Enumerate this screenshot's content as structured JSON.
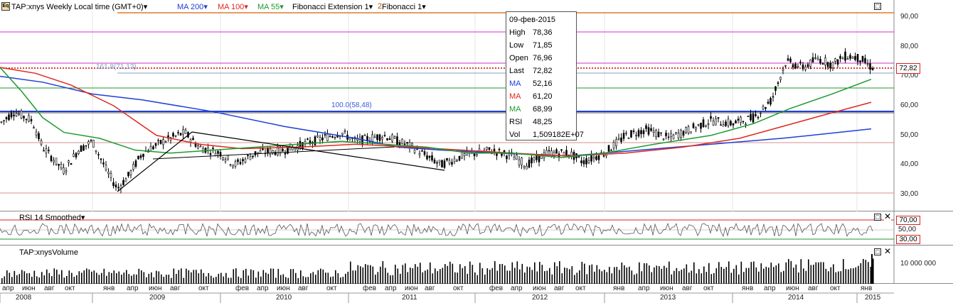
{
  "header": {
    "symbol_label": "TAP:xnys Weekly Local time (GMT+0)",
    "ma200_label": "MA 200",
    "ma100_label": "MA 100",
    "ma55_label": "MA 55",
    "fib_ext_label": "Fibonacci Extension 1",
    "fib_label_a": "2",
    "fib_label_b": "Fibonacci 1",
    "colors": {
      "ma200": "#1f3fd6",
      "ma100": "#e0281e",
      "ma55": "#1f9a2e"
    }
  },
  "price_axis": [
    "90,00",
    "80,00",
    "70,00",
    "60,00",
    "50,00",
    "40,00",
    "30,00"
  ],
  "last_price": "72,82",
  "fib_levels": {
    "ext_161": "161.8(71,13)",
    "ext_100": "100.0(58,48)"
  },
  "tooltip": {
    "date": "09-фев-2015",
    "rows": [
      {
        "label": "High",
        "value": "78,36",
        "color": "#000000"
      },
      {
        "label": "Low",
        "value": "71,85",
        "color": "#000000"
      },
      {
        "label": "Open",
        "value": "76,96",
        "color": "#000000"
      },
      {
        "label": "Last",
        "value": "72,82",
        "color": "#000000"
      },
      {
        "label": "MA",
        "value": "52,16",
        "color": "#1f3fd6"
      },
      {
        "label": "MA",
        "value": "61,20",
        "color": "#e0281e"
      },
      {
        "label": "MA",
        "value": "68,99",
        "color": "#1f9a2e"
      },
      {
        "label": "RSI",
        "value": "48,25",
        "color": "#000000"
      },
      {
        "label": "Vol",
        "value": "1,509182E+07",
        "color": "#000000"
      }
    ]
  },
  "rsi": {
    "label": "RSI 14 Smoothed",
    "level_high": "70,00",
    "level_mid": "50,00",
    "level_low": "30,00"
  },
  "volume": {
    "label": "TAP:xnysVolume",
    "axis_label": "10 000 000"
  },
  "time_axis": {
    "months": [
      "апр",
      "июн",
      "авг",
      "окт",
      "янв",
      "апр",
      "июн",
      "авг",
      "окт",
      "фев",
      "апр",
      "июн",
      "авг",
      "окт",
      "фев",
      "апр",
      "июн",
      "авг",
      "окт",
      "фев",
      "апр",
      "июн",
      "авг",
      "окт",
      "янв",
      "апр",
      "июн",
      "авг",
      "окт",
      "янв",
      "апр",
      "июн",
      "авг",
      "окт",
      "янв"
    ],
    "years": [
      "2008",
      "2009",
      "2010",
      "2011",
      "2012",
      "2013",
      "2014",
      "2015"
    ]
  }
}
